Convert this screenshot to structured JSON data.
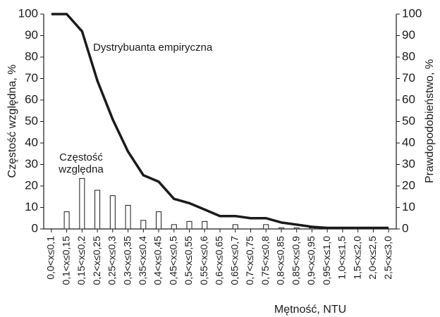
{
  "chart_data": {
    "type": "bar_line",
    "y_label": "Częstość względna, %",
    "y2_label": "Prawdopodobieństwo, %",
    "x_label": "Mętność, NTU",
    "annotations": [
      "Dystrybuanta empiryczna",
      "Częstość",
      "względna"
    ],
    "categories": [
      "0,0<x≤0,1",
      "0,1<x≤0,15",
      "0,15<x≤0,2",
      "0,2<x≤0,25",
      "0,25<x≤0,3",
      "0,3<x≤0,35",
      "0,35<x≤0,4",
      "0,4<x≤0,45",
      "0,45<x≤0,5",
      "0,5<x≤0,55",
      "0,55<x≤0,6",
      "0,6<x≤0,65",
      "0,65<x≤0,7",
      "0,7<x≤0,75",
      "0,75<x≤0,8",
      "0,8<x≤0,85",
      "0,85<x≤0,9",
      "0,9<x≤0,95",
      "0,95<x≤1,0",
      "1,0<x≤1,5",
      "1,5<x≤2,0",
      "2,0<x≤2,5",
      "2,5<x≤3,0"
    ],
    "series": [
      {
        "type": "bar",
        "color": "#ffffff",
        "values": [
          0,
          8,
          23.5,
          18,
          15.5,
          11,
          4,
          8,
          2,
          3.5,
          3.5,
          0,
          2,
          0,
          2,
          0.5,
          0.5,
          0.5,
          0,
          0,
          0,
          0,
          0
        ]
      },
      {
        "type": "line",
        "axis": "y2",
        "color": "#1a1a1a",
        "values": [
          100,
          100,
          92,
          69,
          51,
          36,
          25,
          22,
          14,
          12,
          9,
          6,
          6,
          5,
          5,
          3,
          2,
          1,
          0.5,
          0.5,
          0.5,
          0.5,
          0.5
        ]
      }
    ],
    "ylim": [
      0,
      100
    ],
    "yticks": [
      0,
      10,
      20,
      30,
      40,
      50,
      60,
      70,
      80,
      90,
      100
    ],
    "y2lim": [
      0,
      100
    ],
    "y2ticks": [
      0,
      10,
      20,
      30,
      40,
      50,
      60,
      70,
      80,
      90,
      100
    ]
  }
}
